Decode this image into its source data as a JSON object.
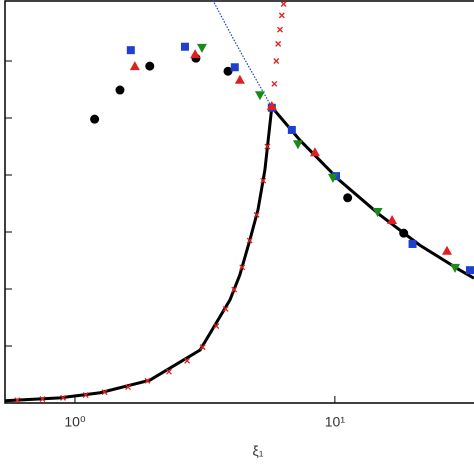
{
  "chart_data": {
    "type": "scatter",
    "x_label": "ξ₁",
    "xscale": "log",
    "xlim": [
      0.538,
      34.3
    ],
    "ylim": [
      0,
      7.07
    ],
    "xticks": [
      {
        "value": 1,
        "label": "10⁰"
      },
      {
        "value": 10,
        "label": "10¹"
      }
    ],
    "yticks": [
      1,
      2,
      3,
      4,
      5,
      6
    ],
    "series": [
      {
        "color": "#000000",
        "style": "line",
        "x": [
          0.538,
          0.875,
          1.25,
          1.94,
          3.03,
          3.95,
          4.31,
          4.71,
          5.06,
          5.38,
          5.72,
          7.34,
          10.4,
          14.9,
          21.2,
          30.3,
          34.3
        ],
        "values": [
          0.04,
          0.09,
          0.18,
          0.4,
          0.93,
          1.81,
          2.25,
          2.86,
          3.39,
          4.09,
          5.19,
          4.61,
          3.91,
          3.3,
          2.77,
          2.33,
          2.19
        ]
      },
      {
        "color": "#e02020",
        "style": "cross",
        "x": [
          0.6,
          0.75,
          0.9,
          1.1,
          1.3,
          1.6,
          1.9,
          2.3,
          2.7,
          3.1,
          3.5,
          3.8,
          4.1,
          4.4,
          4.7,
          5.0,
          5.3,
          5.5,
          5.72,
          5.85,
          5.95,
          6.05,
          6.15,
          6.25,
          6.35
        ],
        "values": [
          0.05,
          0.07,
          0.09,
          0.14,
          0.19,
          0.28,
          0.39,
          0.55,
          0.74,
          0.98,
          1.35,
          1.65,
          1.99,
          2.38,
          2.85,
          3.3,
          3.9,
          4.5,
          5.19,
          5.6,
          6.0,
          6.3,
          6.55,
          6.8,
          7.0
        ]
      },
      {
        "color": "#1f3fcf",
        "style": "dotted",
        "x": [
          3.39,
          4.0,
          4.6,
          5.2,
          5.72
        ],
        "values": [
          7.07,
          6.45,
          5.95,
          5.52,
          5.19
        ]
      },
      {
        "color": "#000000",
        "style": "circle",
        "x": [
          1.19,
          1.49,
          1.94,
          2.92,
          3.88,
          11.2,
          18.4
        ],
        "values": [
          4.98,
          5.49,
          5.91,
          6.05,
          5.82,
          3.6,
          2.98
        ]
      },
      {
        "color": "#1f3fcf",
        "style": "square",
        "x": [
          1.64,
          2.65,
          4.12,
          5.72,
          6.83,
          10.1,
          19.9,
          33.1
        ],
        "values": [
          6.19,
          6.25,
          5.89,
          5.18,
          4.79,
          3.98,
          2.79,
          2.33
        ]
      },
      {
        "color": "#e02020",
        "style": "triangle-up",
        "x": [
          1.7,
          2.9,
          4.31,
          5.72,
          8.38,
          16.6,
          27.0
        ],
        "values": [
          5.91,
          6.12,
          5.67,
          5.21,
          4.4,
          3.21,
          2.67
        ]
      },
      {
        "color": "#1a8a1a",
        "style": "triangle-down",
        "x": [
          3.08,
          5.15,
          7.21,
          9.83,
          14.6,
          29.0
        ],
        "values": [
          6.23,
          5.4,
          4.54,
          3.95,
          3.35,
          2.37
        ]
      }
    ]
  }
}
